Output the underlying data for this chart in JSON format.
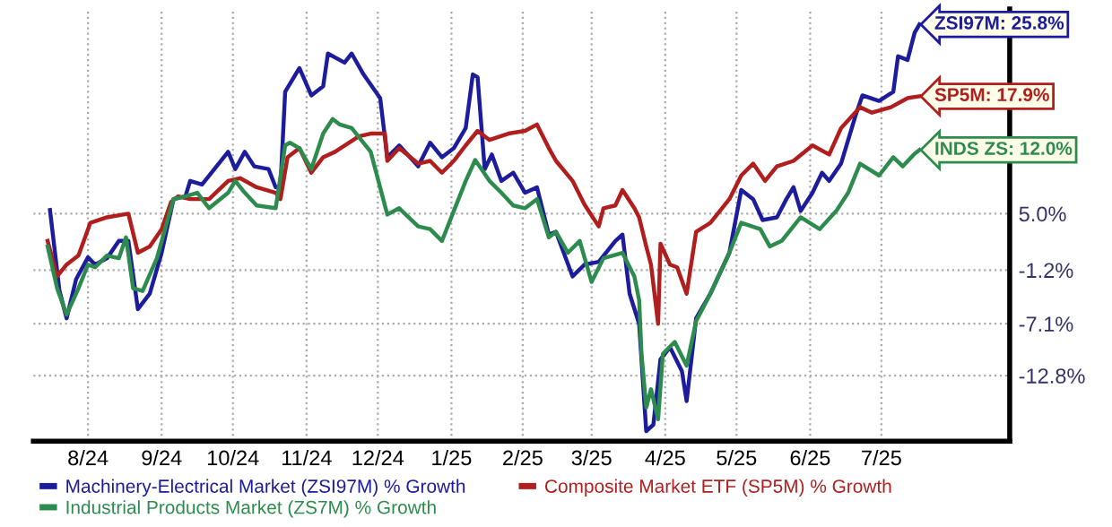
{
  "chart_data": {
    "type": "line",
    "xlim": [
      "2024-07-24",
      "2025-09-08"
    ],
    "xticks": [
      {
        "value": "2024-08-16",
        "label": "8/24"
      },
      {
        "value": "2024-09-16",
        "label": "9/24"
      },
      {
        "value": "2024-10-16",
        "label": "10/24"
      },
      {
        "value": "2024-11-16",
        "label": "11/24"
      },
      {
        "value": "2024-12-16",
        "label": "12/24"
      },
      {
        "value": "2025-01-16",
        "label": "1/25"
      },
      {
        "value": "2025-02-15",
        "label": "2/25"
      },
      {
        "value": "2025-03-16",
        "label": "3/25"
      },
      {
        "value": "2025-04-16",
        "label": "4/25"
      },
      {
        "value": "2025-05-16",
        "label": "5/25"
      },
      {
        "value": "2025-06-16",
        "label": "6/25"
      },
      {
        "value": "2025-07-16",
        "label": "7/25"
      }
    ],
    "ylim": [
      -20,
      27.5
    ],
    "yticks": [
      {
        "value": 5.0,
        "label": "5.0%"
      },
      {
        "value": -1.2,
        "label": "-1.2%"
      },
      {
        "value": -7.1,
        "label": "-7.1%"
      },
      {
        "value": -12.8,
        "label": "-12.8%"
      }
    ],
    "grid": true,
    "legend": "bottom",
    "marker": "none",
    "line_style": "solid",
    "series": [
      {
        "name": "Machinery-Electrical Market (ZSI97M) % Growth",
        "color": "#1c1c9c",
        "x": [
          "2024-07-31",
          "2024-08-04",
          "2024-08-07",
          "2024-08-11",
          "2024-08-16",
          "2024-08-19",
          "2024-08-24",
          "2024-08-29",
          "2024-09-02",
          "2024-09-06",
          "2024-09-11",
          "2024-09-16",
          "2024-09-21",
          "2024-09-26",
          "2024-09-28",
          "2024-10-03",
          "2024-10-14",
          "2024-10-17",
          "2024-10-21",
          "2024-10-25",
          "2024-10-31",
          "2024-11-03",
          "2024-11-05",
          "2024-11-07",
          "2024-11-13",
          "2024-11-18",
          "2024-11-23",
          "2024-11-25",
          "2024-12-02",
          "2024-12-05",
          "2024-12-10",
          "2024-12-17",
          "2024-12-20",
          "2024-12-25",
          "2025-01-02",
          "2025-01-07",
          "2025-01-12",
          "2025-01-17",
          "2025-01-22",
          "2025-01-25",
          "2025-01-27",
          "2025-01-30",
          "2025-02-02",
          "2025-02-06",
          "2025-02-11",
          "2025-02-16",
          "2025-02-21",
          "2025-02-26",
          "2025-03-01",
          "2025-03-08",
          "2025-03-13",
          "2025-03-19",
          "2025-03-26",
          "2025-03-29",
          "2025-04-01",
          "2025-04-05",
          "2025-04-08",
          "2025-04-11",
          "2025-04-14",
          "2025-04-18",
          "2025-04-23",
          "2025-04-25",
          "2025-04-29",
          "2025-05-05",
          "2025-05-13",
          "2025-05-18",
          "2025-05-23",
          "2025-05-27",
          "2025-06-02",
          "2025-06-06",
          "2025-06-09",
          "2025-06-12",
          "2025-06-17",
          "2025-06-21",
          "2025-06-24",
          "2025-06-29",
          "2025-07-05",
          "2025-07-08",
          "2025-07-15",
          "2025-07-21",
          "2025-07-23",
          "2025-07-27",
          "2025-07-30",
          "2025-08-01"
        ],
        "values": [
          5.4,
          -3.5,
          -6.5,
          -2.2,
          0.2,
          -0.6,
          0.1,
          2.0,
          2.0,
          -5.5,
          -3.8,
          0.7,
          6.6,
          6.9,
          8.6,
          8.2,
          11.8,
          9.9,
          11.8,
          10.2,
          9.9,
          7.9,
          7.9,
          18.4,
          21.0,
          18.0,
          19.0,
          22.6,
          21.6,
          22.6,
          20.3,
          17.7,
          11.2,
          12.5,
          10.2,
          12.8,
          11.2,
          12.2,
          14.4,
          20.3,
          20.0,
          9.9,
          11.5,
          8.6,
          9.5,
          7.3,
          7.9,
          2.7,
          3.0,
          -1.9,
          -0.6,
          -0.3,
          2.0,
          2.7,
          -3.8,
          -7.1,
          -18.9,
          -18.2,
          -11.0,
          -9.7,
          -12.3,
          -15.6,
          -6.5,
          -3.8,
          0.7,
          7.6,
          6.6,
          4.3,
          4.6,
          6.6,
          7.9,
          5.3,
          7.3,
          9.5,
          8.6,
          10.5,
          15.7,
          18.0,
          17.4,
          18.4,
          22.3,
          21.9,
          24.9,
          25.8
        ]
      },
      {
        "name": "Composite Market ETF (SP5M) % Growth",
        "color": "#b01e1e",
        "x": [
          "2024-07-30",
          "2024-08-03",
          "2024-08-07",
          "2024-08-12",
          "2024-08-17",
          "2024-08-24",
          "2024-09-02",
          "2024-09-06",
          "2024-09-11",
          "2024-09-16",
          "2024-09-20",
          "2024-09-23",
          "2024-09-28",
          "2024-10-06",
          "2024-10-14",
          "2024-10-19",
          "2024-10-26",
          "2024-11-03",
          "2024-11-05",
          "2024-11-08",
          "2024-11-13",
          "2024-11-18",
          "2024-11-23",
          "2024-11-28",
          "2024-12-08",
          "2024-12-13",
          "2024-12-19",
          "2024-12-20",
          "2024-12-25",
          "2025-01-02",
          "2025-01-07",
          "2025-01-12",
          "2025-01-17",
          "2025-01-22",
          "2025-01-27",
          "2025-02-01",
          "2025-02-09",
          "2025-02-16",
          "2025-02-21",
          "2025-02-26",
          "2025-03-01",
          "2025-03-08",
          "2025-03-13",
          "2025-03-19",
          "2025-03-21",
          "2025-03-26",
          "2025-03-29",
          "2025-04-03",
          "2025-04-05",
          "2025-04-08",
          "2025-04-10",
          "2025-04-13",
          "2025-04-14",
          "2025-04-18",
          "2025-04-21",
          "2025-04-25",
          "2025-04-29",
          "2025-05-05",
          "2025-05-13",
          "2025-05-18",
          "2025-05-23",
          "2025-05-28",
          "2025-06-02",
          "2025-06-09",
          "2025-06-17",
          "2025-06-24",
          "2025-06-29",
          "2025-07-07",
          "2025-07-12",
          "2025-07-20",
          "2025-07-27",
          "2025-08-01"
        ],
        "values": [
          2.0,
          -1.9,
          -0.6,
          0.4,
          4.0,
          4.6,
          5.0,
          0.7,
          1.4,
          3.3,
          6.3,
          6.9,
          6.6,
          6.6,
          8.6,
          8.9,
          7.9,
          7.3,
          6.6,
          11.2,
          12.2,
          9.5,
          11.2,
          11.8,
          13.5,
          13.8,
          13.8,
          10.8,
          12.2,
          10.5,
          10.8,
          9.5,
          10.8,
          12.5,
          14.1,
          13.1,
          13.8,
          14.1,
          14.8,
          12.2,
          10.8,
          8.6,
          6.0,
          3.6,
          5.6,
          5.9,
          7.6,
          5.6,
          4.6,
          1.4,
          -0.6,
          -7.1,
          1.7,
          -0.6,
          -0.9,
          -3.8,
          3.0,
          4.0,
          6.6,
          9.2,
          10.5,
          8.6,
          10.2,
          10.8,
          12.5,
          11.5,
          14.4,
          16.7,
          16.1,
          16.7,
          17.7,
          17.9
        ]
      },
      {
        "name": "Industrial Products Market (ZS7M) % Growth",
        "color": "#2e8b4e",
        "x": [
          "2024-07-30",
          "2024-08-03",
          "2024-08-07",
          "2024-08-12",
          "2024-08-16",
          "2024-08-19",
          "2024-08-24",
          "2024-08-29",
          "2024-09-01",
          "2024-09-04",
          "2024-09-08",
          "2024-09-14",
          "2024-09-21",
          "2024-09-26",
          "2024-10-01",
          "2024-10-06",
          "2024-10-14",
          "2024-10-17",
          "2024-10-21",
          "2024-10-26",
          "2024-11-03",
          "2024-11-07",
          "2024-11-09",
          "2024-11-13",
          "2024-11-18",
          "2024-11-23",
          "2024-11-27",
          "2024-11-30",
          "2024-12-05",
          "2024-12-13",
          "2024-12-20",
          "2024-12-25",
          "2025-01-02",
          "2025-01-07",
          "2025-01-12",
          "2025-01-17",
          "2025-01-22",
          "2025-01-26",
          "2025-02-01",
          "2025-02-06",
          "2025-02-11",
          "2025-02-16",
          "2025-02-21",
          "2025-02-26",
          "2025-03-01",
          "2025-03-06",
          "2025-03-11",
          "2025-03-16",
          "2025-03-21",
          "2025-03-29",
          "2025-04-03",
          "2025-04-05",
          "2025-04-06",
          "2025-04-08",
          "2025-04-10",
          "2025-04-13",
          "2025-04-15",
          "2025-04-20",
          "2025-04-25",
          "2025-04-29",
          "2025-05-05",
          "2025-05-13",
          "2025-05-18",
          "2025-05-26",
          "2025-05-30",
          "2025-06-04",
          "2025-06-12",
          "2025-06-20",
          "2025-06-27",
          "2025-07-02",
          "2025-07-07",
          "2025-07-15",
          "2025-07-21",
          "2025-07-25",
          "2025-07-30",
          "2025-08-01"
        ],
        "values": [
          1.4,
          -3.2,
          -6.1,
          -3.2,
          -0.6,
          -0.9,
          0.4,
          0.1,
          2.4,
          -3.2,
          -3.5,
          0.1,
          6.6,
          6.9,
          7.3,
          5.6,
          7.3,
          8.6,
          7.3,
          5.9,
          5.6,
          12.5,
          12.8,
          12.2,
          9.9,
          13.8,
          15.4,
          14.8,
          14.4,
          11.8,
          4.9,
          5.6,
          3.6,
          3.3,
          2.0,
          5.3,
          8.6,
          10.9,
          8.6,
          7.3,
          5.9,
          5.6,
          6.6,
          2.4,
          3.0,
          0.7,
          2.0,
          -2.5,
          0.1,
          0.7,
          -1.9,
          -4.5,
          -10.4,
          -16.3,
          -14.3,
          -17.6,
          -10.4,
          -9.1,
          -11.7,
          -6.8,
          -3.8,
          0.7,
          4.0,
          3.3,
          1.4,
          2.0,
          4.6,
          3.3,
          5.3,
          7.3,
          10.5,
          9.2,
          11.2,
          10.2,
          11.6,
          12.0
        ]
      }
    ],
    "annotations": [
      {
        "text": "ZSI97M: 25.8%",
        "x": "2025-08-01",
        "y": 25.8
      },
      {
        "text": "SP5M: 17.9%",
        "x": "2025-08-01",
        "y": 17.9
      },
      {
        "text": "INDS ZS: 12.0%",
        "x": "2025-08-01",
        "y": 12.0
      }
    ]
  }
}
